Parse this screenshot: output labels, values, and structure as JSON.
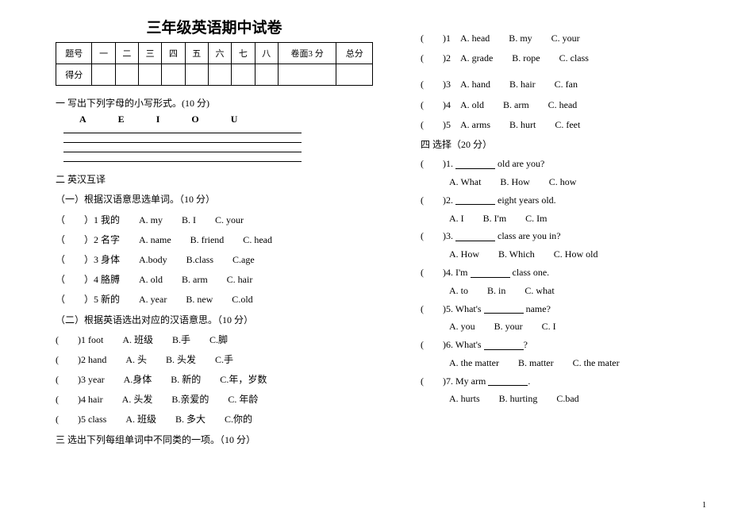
{
  "title": "三年级英语期中试卷",
  "score_table": {
    "headers": [
      "题号",
      "一",
      "二",
      "三",
      "四",
      "五",
      "六",
      "七",
      "八",
      "卷面3 分",
      "总分"
    ],
    "row_label": "得分"
  },
  "section1": {
    "heading": "一 写出下列字母的小写形式。(10 分)",
    "letters": [
      "A",
      "E",
      "I",
      "O",
      "U"
    ]
  },
  "section2": {
    "heading": "二 英汉互译",
    "part1_heading": "（一）根据汉语意思选单词。（10 分）",
    "part1": [
      {
        "n": "1",
        "t": "我的",
        "a": "A. my",
        "b": "B. I",
        "c": "C. your"
      },
      {
        "n": "2",
        "t": "名字",
        "a": "A. name",
        "b": "B. friend",
        "c": "C. head"
      },
      {
        "n": "3",
        "t": "身体",
        "a": "A.body",
        "b": "B.class",
        "c": "C.age"
      },
      {
        "n": "4",
        "t": "胳膊",
        "a": "A. old",
        "b": "B. arm",
        "c": "C. hair"
      },
      {
        "n": "5",
        "t": "新的",
        "a": "A. year",
        "b": "B. new",
        "c": "C.old"
      }
    ],
    "part2_heading": "（二）根据英语选出对应的汉语意思。（10 分）",
    "part2": [
      {
        "n": "1",
        "t": "foot",
        "a": "A. 班级",
        "b": "B.手",
        "c": "C.脚"
      },
      {
        "n": "2",
        "t": "hand",
        "a": "A. 头",
        "b": "B. 头发",
        "c": "C.手"
      },
      {
        "n": "3",
        "t": "year",
        "a": "A.身体",
        "b": "B. 新的",
        "c": "C.年，岁数"
      },
      {
        "n": "4",
        "t": "hair",
        "a": "A. 头发",
        "b": "B.亲爱的",
        "c": "C. 年龄"
      },
      {
        "n": "5",
        "t": "class",
        "a": "A. 班级",
        "b": "B. 多大",
        "c": "C.你的"
      }
    ]
  },
  "section3": {
    "heading": "三 选出下列每组单词中不同类的一项。（10 分）",
    "items": [
      {
        "n": "1",
        "a": "A. head",
        "b": "B. my",
        "c": "C. your"
      },
      {
        "n": "2",
        "a": "A. grade",
        "b": "B. rope",
        "c": "C. class"
      },
      {
        "n": "3",
        "a": "A. hand",
        "b": "B. hair",
        "c": "C. fan"
      },
      {
        "n": "4",
        "a": "A. old",
        "b": "B. arm",
        "c": "C. head"
      },
      {
        "n": "5",
        "a": "A. arms",
        "b": "B. hurt",
        "c": "C. feet"
      }
    ]
  },
  "section4": {
    "heading": "四 选择（20 分）",
    "items": [
      {
        "n": "1",
        "q1": "",
        "q2": " old are you?",
        "a": "A. What",
        "b": "B. How",
        "c": "C. how"
      },
      {
        "n": "2",
        "q1": "",
        "q2": " eight years old.",
        "a": "A. I",
        "b": "B. I'm",
        "c": "C. Im"
      },
      {
        "n": "3",
        "q1": "",
        "q2": " class are you in?",
        "a": "A. How",
        "b": "B. Which",
        "c": "C. How old"
      },
      {
        "n": "4",
        "q1": "I'm ",
        "q2": " class one.",
        "a": "A. to",
        "b": "B. in",
        "c": "C. what"
      },
      {
        "n": "5",
        "q1": "What's ",
        "q2": " name?",
        "a": "A. you",
        "b": "B. your",
        "c": "C. I"
      },
      {
        "n": "6",
        "q1": "What's ",
        "q2": "?",
        "a": "A. the matter",
        "b": "B. matter",
        "c": "C. the mater"
      },
      {
        "n": "7",
        "q1": "My arm ",
        "q2": ".",
        "a": "A. hurts",
        "b": "B. hurting",
        "c": "C.bad"
      }
    ]
  },
  "page_number": "1"
}
